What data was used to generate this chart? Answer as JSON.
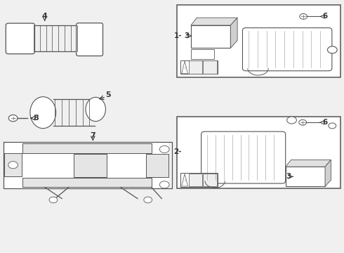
{
  "bg_color": "#f0f0f0",
  "line_color": "#555555",
  "box_bg": "#ffffff",
  "fig_width": 4.9,
  "fig_height": 3.6,
  "dpi": 100
}
